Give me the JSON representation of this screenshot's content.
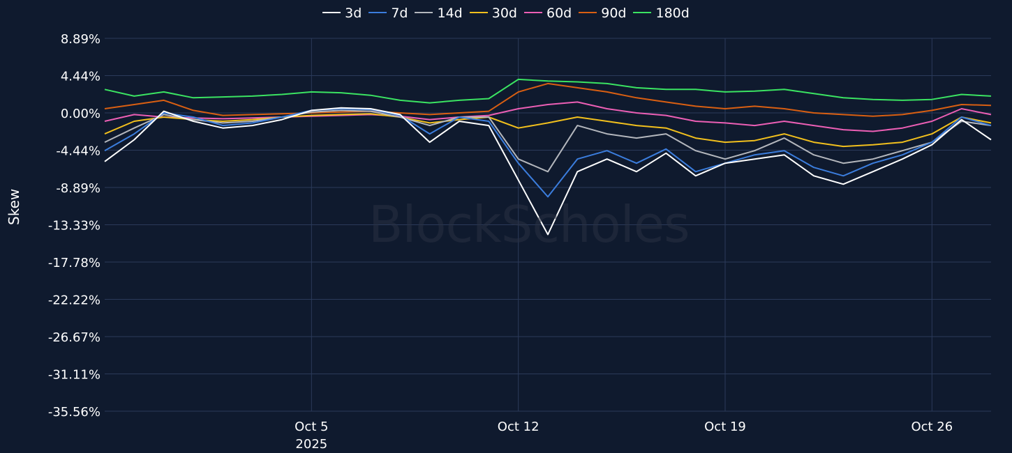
{
  "chart_data": {
    "type": "line",
    "ylabel": "Skew",
    "watermark": "BlockScholes",
    "y_ticks": [
      "8.89%",
      "4.44%",
      "0.00%",
      "-4.44%",
      "-8.89%",
      "-13.33%",
      "-17.78%",
      "-22.22%",
      "-26.67%",
      "-31.11%",
      "-35.56%"
    ],
    "ylim": [
      -35.56,
      8.89
    ],
    "x_range": [
      "2025-09-28",
      "2025-10-28"
    ],
    "x_ticks": [
      {
        "date": "2025-10-05",
        "label": "Oct 5",
        "sublabel": "2025"
      },
      {
        "date": "2025-10-12",
        "label": "Oct 12",
        "sublabel": ""
      },
      {
        "date": "2025-10-19",
        "label": "Oct 19",
        "sublabel": ""
      },
      {
        "date": "2025-10-26",
        "label": "Oct 26",
        "sublabel": ""
      }
    ],
    "grid": true,
    "legend_position": "top-center",
    "x": [
      "2025-09-28",
      "2025-09-29",
      "2025-09-30",
      "2025-10-01",
      "2025-10-02",
      "2025-10-03",
      "2025-10-04",
      "2025-10-05",
      "2025-10-06",
      "2025-10-07",
      "2025-10-08",
      "2025-10-09",
      "2025-10-10",
      "2025-10-11",
      "2025-10-12",
      "2025-10-13",
      "2025-10-14",
      "2025-10-15",
      "2025-10-16",
      "2025-10-17",
      "2025-10-18",
      "2025-10-19",
      "2025-10-20",
      "2025-10-21",
      "2025-10-22",
      "2025-10-23",
      "2025-10-24",
      "2025-10-25",
      "2025-10-26",
      "2025-10-27",
      "2025-10-28"
    ],
    "series": [
      {
        "name": "3d",
        "color": "#ffffff",
        "values": [
          -5.8,
          -3.2,
          0.2,
          -1.0,
          -1.8,
          -1.5,
          -0.8,
          0.3,
          0.6,
          0.5,
          -0.2,
          -3.5,
          -1.0,
          -1.5,
          -8.0,
          -14.5,
          -7.0,
          -5.5,
          -7.0,
          -4.8,
          -7.5,
          -6.0,
          -5.5,
          -5.0,
          -7.5,
          -8.5,
          -7.0,
          -5.5,
          -3.8,
          -0.8,
          -3.2
        ]
      },
      {
        "name": "7d",
        "color": "#3b7ddd",
        "values": [
          -4.5,
          -2.5,
          0.0,
          -0.5,
          -1.5,
          -1.2,
          -0.5,
          0.3,
          0.5,
          0.4,
          -0.3,
          -2.5,
          -0.5,
          -1.0,
          -6.0,
          -10.0,
          -5.5,
          -4.5,
          -6.0,
          -4.3,
          -7.0,
          -6.0,
          -5.0,
          -4.5,
          -6.5,
          -7.5,
          -6.0,
          -5.0,
          -3.5,
          -0.5,
          -1.5
        ]
      },
      {
        "name": "14d",
        "color": "#b4b7bd",
        "values": [
          -3.5,
          -1.8,
          -0.2,
          -0.8,
          -1.2,
          -1.0,
          -0.5,
          0.1,
          0.3,
          0.2,
          -0.5,
          -1.5,
          -0.5,
          -0.5,
          -5.5,
          -7.0,
          -1.5,
          -2.5,
          -3.0,
          -2.5,
          -4.5,
          -5.5,
          -4.5,
          -3.0,
          -5.0,
          -6.0,
          -5.5,
          -4.5,
          -3.5,
          -1.0,
          -1.5
        ]
      },
      {
        "name": "30d",
        "color": "#f2c01d",
        "values": [
          -2.5,
          -1.0,
          -0.5,
          -0.8,
          -1.0,
          -0.8,
          -0.5,
          -0.3,
          -0.2,
          -0.1,
          -0.5,
          -1.2,
          -0.8,
          -0.5,
          -1.8,
          -1.2,
          -0.5,
          -1.0,
          -1.5,
          -1.8,
          -3.0,
          -3.5,
          -3.3,
          -2.5,
          -3.5,
          -4.0,
          -3.8,
          -3.5,
          -2.5,
          -0.5,
          -1.2
        ]
      },
      {
        "name": "60d",
        "color": "#ec5fb5",
        "values": [
          -1.0,
          -0.2,
          -0.5,
          -0.6,
          -0.7,
          -0.6,
          -0.5,
          -0.4,
          -0.3,
          -0.2,
          -0.4,
          -0.8,
          -0.5,
          -0.3,
          0.5,
          1.0,
          1.3,
          0.5,
          0.0,
          -0.3,
          -1.0,
          -1.2,
          -1.5,
          -1.0,
          -1.5,
          -2.0,
          -2.2,
          -1.8,
          -1.0,
          0.5,
          -0.2
        ]
      },
      {
        "name": "90d",
        "color": "#d95f12",
        "values": [
          0.5,
          1.0,
          1.5,
          0.3,
          -0.3,
          -0.2,
          -0.1,
          0.0,
          0.1,
          0.2,
          0.0,
          -0.2,
          0.0,
          0.2,
          2.5,
          3.5,
          3.0,
          2.5,
          1.8,
          1.3,
          0.8,
          0.5,
          0.8,
          0.5,
          0.0,
          -0.2,
          -0.4,
          -0.2,
          0.3,
          1.0,
          0.9
        ]
      },
      {
        "name": "180d",
        "color": "#3be462",
        "values": [
          2.8,
          2.0,
          2.5,
          1.8,
          1.9,
          2.0,
          2.2,
          2.5,
          2.4,
          2.1,
          1.5,
          1.2,
          1.5,
          1.7,
          4.0,
          3.8,
          3.7,
          3.5,
          3.0,
          2.8,
          2.8,
          2.5,
          2.6,
          2.8,
          2.3,
          1.8,
          1.6,
          1.5,
          1.6,
          2.2,
          2.0
        ]
      }
    ]
  }
}
